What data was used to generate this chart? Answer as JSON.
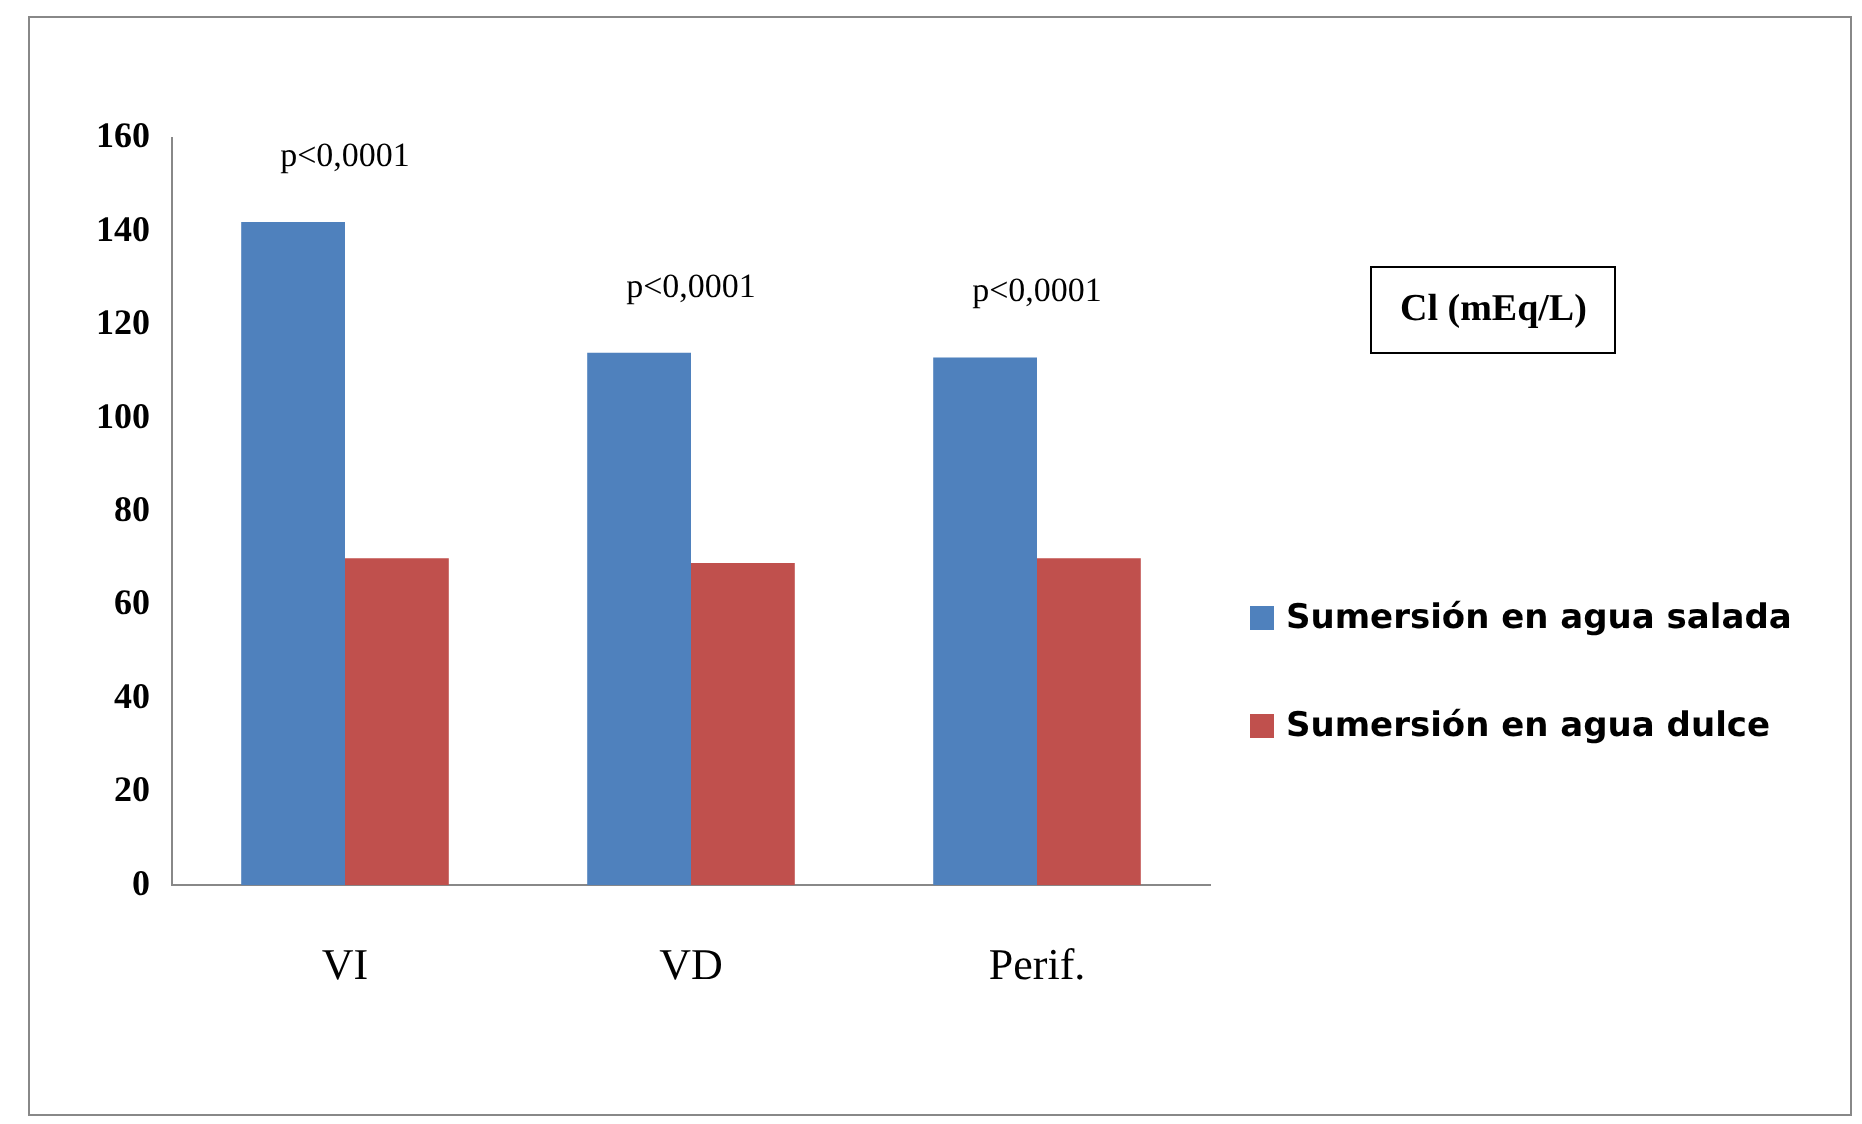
{
  "chart_data": {
    "type": "bar",
    "title": "Cl (mEq/L)",
    "categories": [
      "VI",
      "VD",
      "Perif."
    ],
    "series": [
      {
        "name": "Sumersión en agua salada",
        "color": "#4f81bd",
        "values": [
          142,
          114,
          113
        ]
      },
      {
        "name": "Sumersión en agua dulce",
        "color": "#c0504d",
        "values": [
          70,
          69,
          70
        ]
      }
    ],
    "ylim": [
      0,
      160
    ],
    "yticks": [
      0,
      20,
      40,
      60,
      80,
      100,
      120,
      140,
      160
    ],
    "grid": false,
    "legend": "right",
    "annotations": [
      "p<0,0001",
      "p<0,0001",
      "p<0,0001"
    ]
  }
}
